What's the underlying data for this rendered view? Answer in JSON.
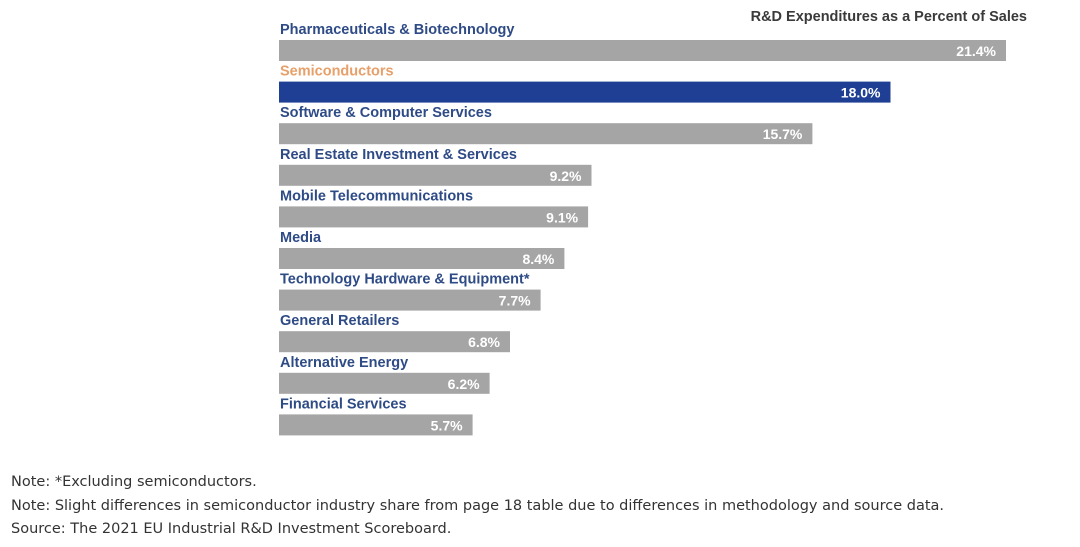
{
  "chart_data": {
    "type": "bar",
    "orientation": "horizontal",
    "title": "R&D Expenditures as a Percent of Sales",
    "categories": [
      "Pharmaceuticals & Biotechnology",
      "Semiconductors",
      "Software & Computer Services",
      "Real Estate Investment & Services",
      "Mobile Telecommunications",
      "Media",
      "Technology Hardware & Equipment*",
      "General Retailers",
      "Alternative Energy",
      "Financial Services"
    ],
    "values": [
      21.4,
      18.0,
      15.7,
      9.2,
      9.1,
      8.4,
      7.7,
      6.8,
      6.2,
      5.7
    ],
    "labels": [
      "21.4%",
      "18.0%",
      "15.7%",
      "9.2%",
      "9.1%",
      "8.4%",
      "7.7%",
      "6.8%",
      "6.2%",
      "5.7%"
    ],
    "highlight_index": 1,
    "xlim": [
      0,
      21.4
    ],
    "grid": false,
    "legend": "none"
  },
  "colors": {
    "bar": "#a5a5a5",
    "highlight_bar": "#1f3f94",
    "category_label": "#2e4b86",
    "highlight_label": "#e8a06a",
    "value_label": "#ffffff",
    "title": "#3a3a3a",
    "notes": "#333333"
  },
  "notes": [
    "Note: *Excluding semiconductors.",
    "Note: Slight differences in semiconductor industry share from page 18 table due to differences in methodology and source data.",
    "Source: The 2021 EU Industrial R&D Investment Scoreboard."
  ]
}
